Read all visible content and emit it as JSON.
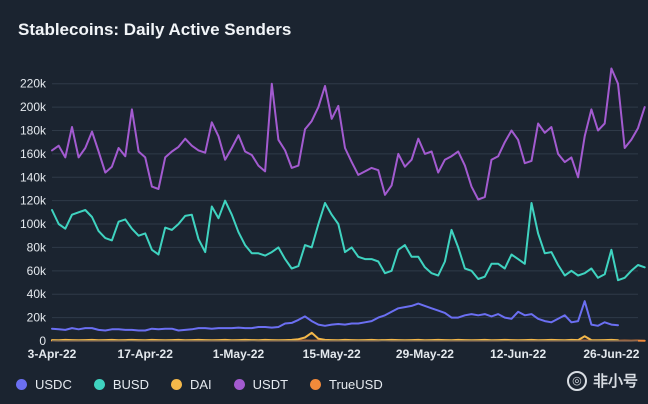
{
  "chart_data": {
    "type": "line",
    "title": "Stablecoins: Daily Active Senders",
    "xlabel": "",
    "ylabel": "",
    "ylim": [
      0,
      230000
    ],
    "yticks": [
      0,
      20000,
      40000,
      60000,
      80000,
      100000,
      120000,
      140000,
      160000,
      180000,
      200000,
      220000
    ],
    "ytick_labels": [
      "0",
      "20k",
      "40k",
      "60k",
      "80k",
      "100k",
      "120k",
      "140k",
      "160k",
      "180k",
      "200k",
      "220k"
    ],
    "xticks": [
      0,
      14,
      28,
      42,
      56,
      70,
      84
    ],
    "xtick_labels": [
      "3-Apr-22",
      "17-Apr-22",
      "1-May-22",
      "15-May-22",
      "29-May-22",
      "12-Jun-22",
      "26-Jun-22"
    ],
    "xlim": [
      0,
      88
    ],
    "grid": true,
    "legend": "bottom",
    "series": [
      {
        "name": "USDC",
        "color": "#6b6ff2",
        "values": [
          10500,
          10000,
          9500,
          11000,
          10000,
          11000,
          11000,
          9500,
          9000,
          10000,
          10000,
          9500,
          9500,
          9000,
          9000,
          10500,
          10000,
          10500,
          10500,
          9000,
          9500,
          10000,
          11000,
          11000,
          10500,
          11000,
          11000,
          11000,
          11500,
          11000,
          11000,
          12000,
          12000,
          11500,
          12000,
          15000,
          15500,
          18000,
          21000,
          17000,
          14000,
          13000,
          14000,
          14500,
          14000,
          15000,
          15000,
          16000,
          17000,
          20000,
          22000,
          25000,
          28000,
          29000,
          30000,
          32000,
          30000,
          28000,
          26000,
          24000,
          20000,
          20000,
          22000,
          23000,
          22000,
          23000,
          21000,
          23000,
          20000,
          19000,
          25000,
          22000,
          23000,
          19000,
          17000,
          16000,
          19000,
          22000,
          16000,
          17000,
          34000,
          14000,
          13000,
          16000,
          14000,
          13500
        ]
      },
      {
        "name": "BUSD",
        "color": "#3fd3c0",
        "values": [
          112000,
          100000,
          96000,
          108000,
          110000,
          112000,
          106000,
          94000,
          88000,
          86000,
          102000,
          104000,
          96000,
          90000,
          92000,
          78000,
          74000,
          97000,
          95000,
          100000,
          107000,
          108000,
          87000,
          76000,
          115000,
          105000,
          120000,
          108000,
          93000,
          82000,
          75000,
          75000,
          73000,
          76000,
          80000,
          70000,
          62000,
          64000,
          82000,
          80000,
          100000,
          118000,
          108000,
          100000,
          76000,
          80000,
          72000,
          70000,
          70000,
          68000,
          58000,
          60000,
          78000,
          82000,
          72000,
          72000,
          63000,
          58000,
          56000,
          68000,
          95000,
          80000,
          62000,
          60000,
          53000,
          55000,
          66000,
          66000,
          62000,
          74000,
          70000,
          66000,
          118000,
          92000,
          75000,
          76000,
          65000,
          56000,
          60000,
          56000,
          58000,
          62000,
          54000,
          57000,
          78000,
          52000,
          54000,
          60000,
          65000,
          63000
        ]
      },
      {
        "name": "DAI",
        "color": "#f4b84a",
        "values": [
          800,
          700,
          900,
          800,
          700,
          800,
          900,
          700,
          800,
          900,
          700,
          800,
          900,
          800,
          700,
          900,
          800,
          700,
          800,
          900,
          700,
          800,
          900,
          800,
          700,
          800,
          900,
          700,
          800,
          900,
          800,
          700,
          900,
          800,
          700,
          800,
          900,
          1500,
          3000,
          7000,
          2000,
          900,
          800,
          700,
          900,
          800,
          700,
          800,
          900,
          700,
          800,
          900,
          800,
          700,
          800,
          900,
          700,
          800,
          900,
          800,
          700,
          900,
          800,
          700,
          800,
          900,
          700,
          800,
          900,
          800,
          700,
          800,
          900,
          700,
          800,
          900,
          800,
          700,
          900,
          800,
          4000,
          800,
          700,
          800,
          900,
          700
        ]
      },
      {
        "name": "USDT",
        "color": "#a35bd0",
        "values": [
          163000,
          167000,
          157000,
          183000,
          157000,
          165000,
          179000,
          162000,
          144000,
          149000,
          165000,
          158000,
          198000,
          162000,
          157000,
          132000,
          130000,
          157000,
          162000,
          166000,
          173000,
          167000,
          163000,
          161000,
          187000,
          175000,
          155000,
          165000,
          176000,
          162000,
          159000,
          150000,
          145000,
          220000,
          172000,
          163000,
          148000,
          150000,
          181000,
          188000,
          200000,
          218000,
          190000,
          201000,
          165000,
          153000,
          142000,
          145000,
          148000,
          146000,
          125000,
          133000,
          160000,
          149000,
          155000,
          173000,
          160000,
          162000,
          144000,
          155000,
          158000,
          162000,
          150000,
          132000,
          121000,
          123000,
          155000,
          158000,
          170000,
          180000,
          172000,
          152000,
          154000,
          186000,
          178000,
          183000,
          160000,
          153000,
          157000,
          140000,
          175000,
          198000,
          180000,
          186000,
          233000,
          220000,
          165000,
          172000,
          182000,
          200000
        ]
      },
      {
        "name": "TrueUSD",
        "color": "#f28a3a",
        "values": [
          300,
          250,
          300,
          280,
          300,
          260,
          300,
          280,
          300,
          250,
          300,
          280,
          300,
          260,
          300,
          280,
          300,
          250,
          300,
          280,
          300,
          260,
          300,
          280,
          300,
          250,
          300,
          280,
          300,
          260,
          300,
          280,
          300,
          250,
          300,
          280,
          300,
          260,
          300,
          280,
          300,
          250,
          300,
          280,
          300,
          260,
          300,
          280,
          300,
          250,
          300,
          280,
          300,
          260,
          300,
          280,
          300,
          250,
          300,
          280,
          300,
          260,
          300,
          280,
          300,
          250,
          300,
          280,
          300,
          260,
          300,
          280,
          300,
          250,
          300,
          280,
          300,
          260,
          300,
          280,
          300,
          250,
          300,
          280,
          300,
          260,
          300,
          280,
          300,
          250
        ]
      }
    ]
  },
  "watermark": {
    "text": "非小号",
    "icon": "feixiaohao-logo-icon"
  }
}
